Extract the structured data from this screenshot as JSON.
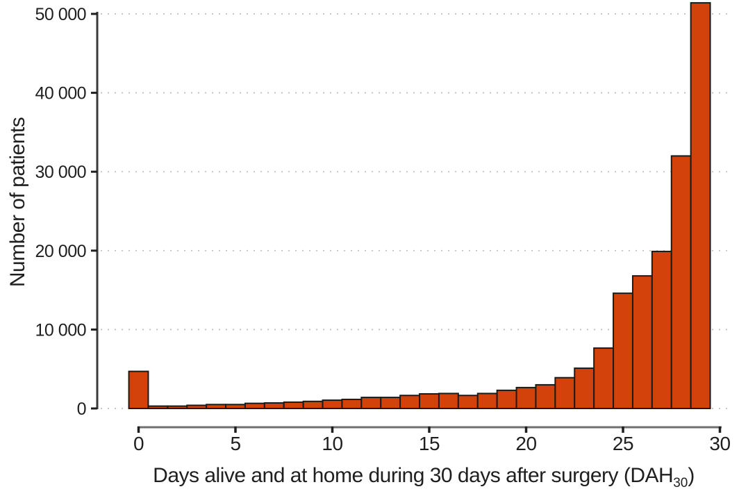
{
  "chart_data": {
    "type": "bar",
    "subtype": "histogram",
    "title": "",
    "ylabel": "Number of patients",
    "xlabel_main": "Days alive and at home during 30 days after surgery (DAH",
    "xlabel_sub": "30",
    "xlabel_end": ")",
    "x": [
      0,
      1,
      2,
      3,
      4,
      5,
      6,
      7,
      8,
      9,
      10,
      11,
      12,
      13,
      14,
      15,
      16,
      17,
      18,
      19,
      20,
      21,
      22,
      23,
      24,
      25,
      26,
      27,
      28,
      29
    ],
    "values": [
      4700,
      300,
      300,
      400,
      500,
      500,
      650,
      700,
      800,
      900,
      1050,
      1150,
      1400,
      1400,
      1650,
      1850,
      1900,
      1650,
      1900,
      2300,
      2650,
      3000,
      3900,
      5100,
      7650,
      14600,
      16800,
      19900,
      32000,
      51400
    ],
    "bin_width": 1,
    "xticks": {
      "values": [
        0,
        5,
        10,
        15,
        20,
        25,
        30
      ],
      "labels": [
        "0",
        "5",
        "10",
        "15",
        "20",
        "25",
        "30"
      ]
    },
    "yticks": {
      "values": [
        0,
        10000,
        20000,
        30000,
        40000,
        50000
      ],
      "labels": [
        "0",
        "10 000",
        "20 000",
        "30 000",
        "40 000",
        "50 000"
      ]
    },
    "xlim": [
      -0.5,
      30
    ],
    "ylim": [
      0,
      50000
    ],
    "grid": "horizontal-dotted",
    "legend": "none",
    "colors": {
      "bar_fill": "#d4420b",
      "bar_stroke": "#1a1a1a",
      "grid": "#c3c3c3",
      "y_axis": "#3a3a3a",
      "x_axis": "#6f6f6f",
      "tick": "#1f1f1f",
      "text": "#1f1f1f"
    }
  }
}
